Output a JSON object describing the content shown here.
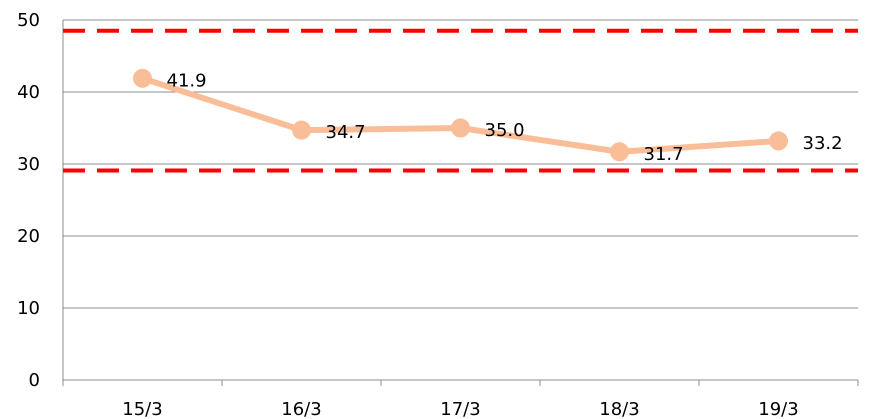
{
  "chart_data": {
    "type": "line",
    "title": "",
    "xlabel": "",
    "ylabel": "",
    "categories": [
      "15/3",
      "16/3",
      "17/3",
      "18/3",
      "19/3"
    ],
    "series": [
      {
        "values": [
          41.9,
          34.7,
          35.0,
          31.7,
          33.2
        ],
        "labels": [
          "41.9",
          "34.7",
          "35.0",
          "31.7",
          "33.2"
        ],
        "color": "#F9BE98"
      }
    ],
    "reference_lines": [
      {
        "value": 48.5,
        "color": "#FF0000",
        "style": "dashed"
      },
      {
        "value": 29.1,
        "color": "#FF0000",
        "style": "dashed"
      }
    ],
    "ylim": [
      0,
      50
    ],
    "yticks": [
      "0",
      "10",
      "20",
      "30",
      "40",
      "50"
    ],
    "grid": true,
    "legend": "none"
  }
}
